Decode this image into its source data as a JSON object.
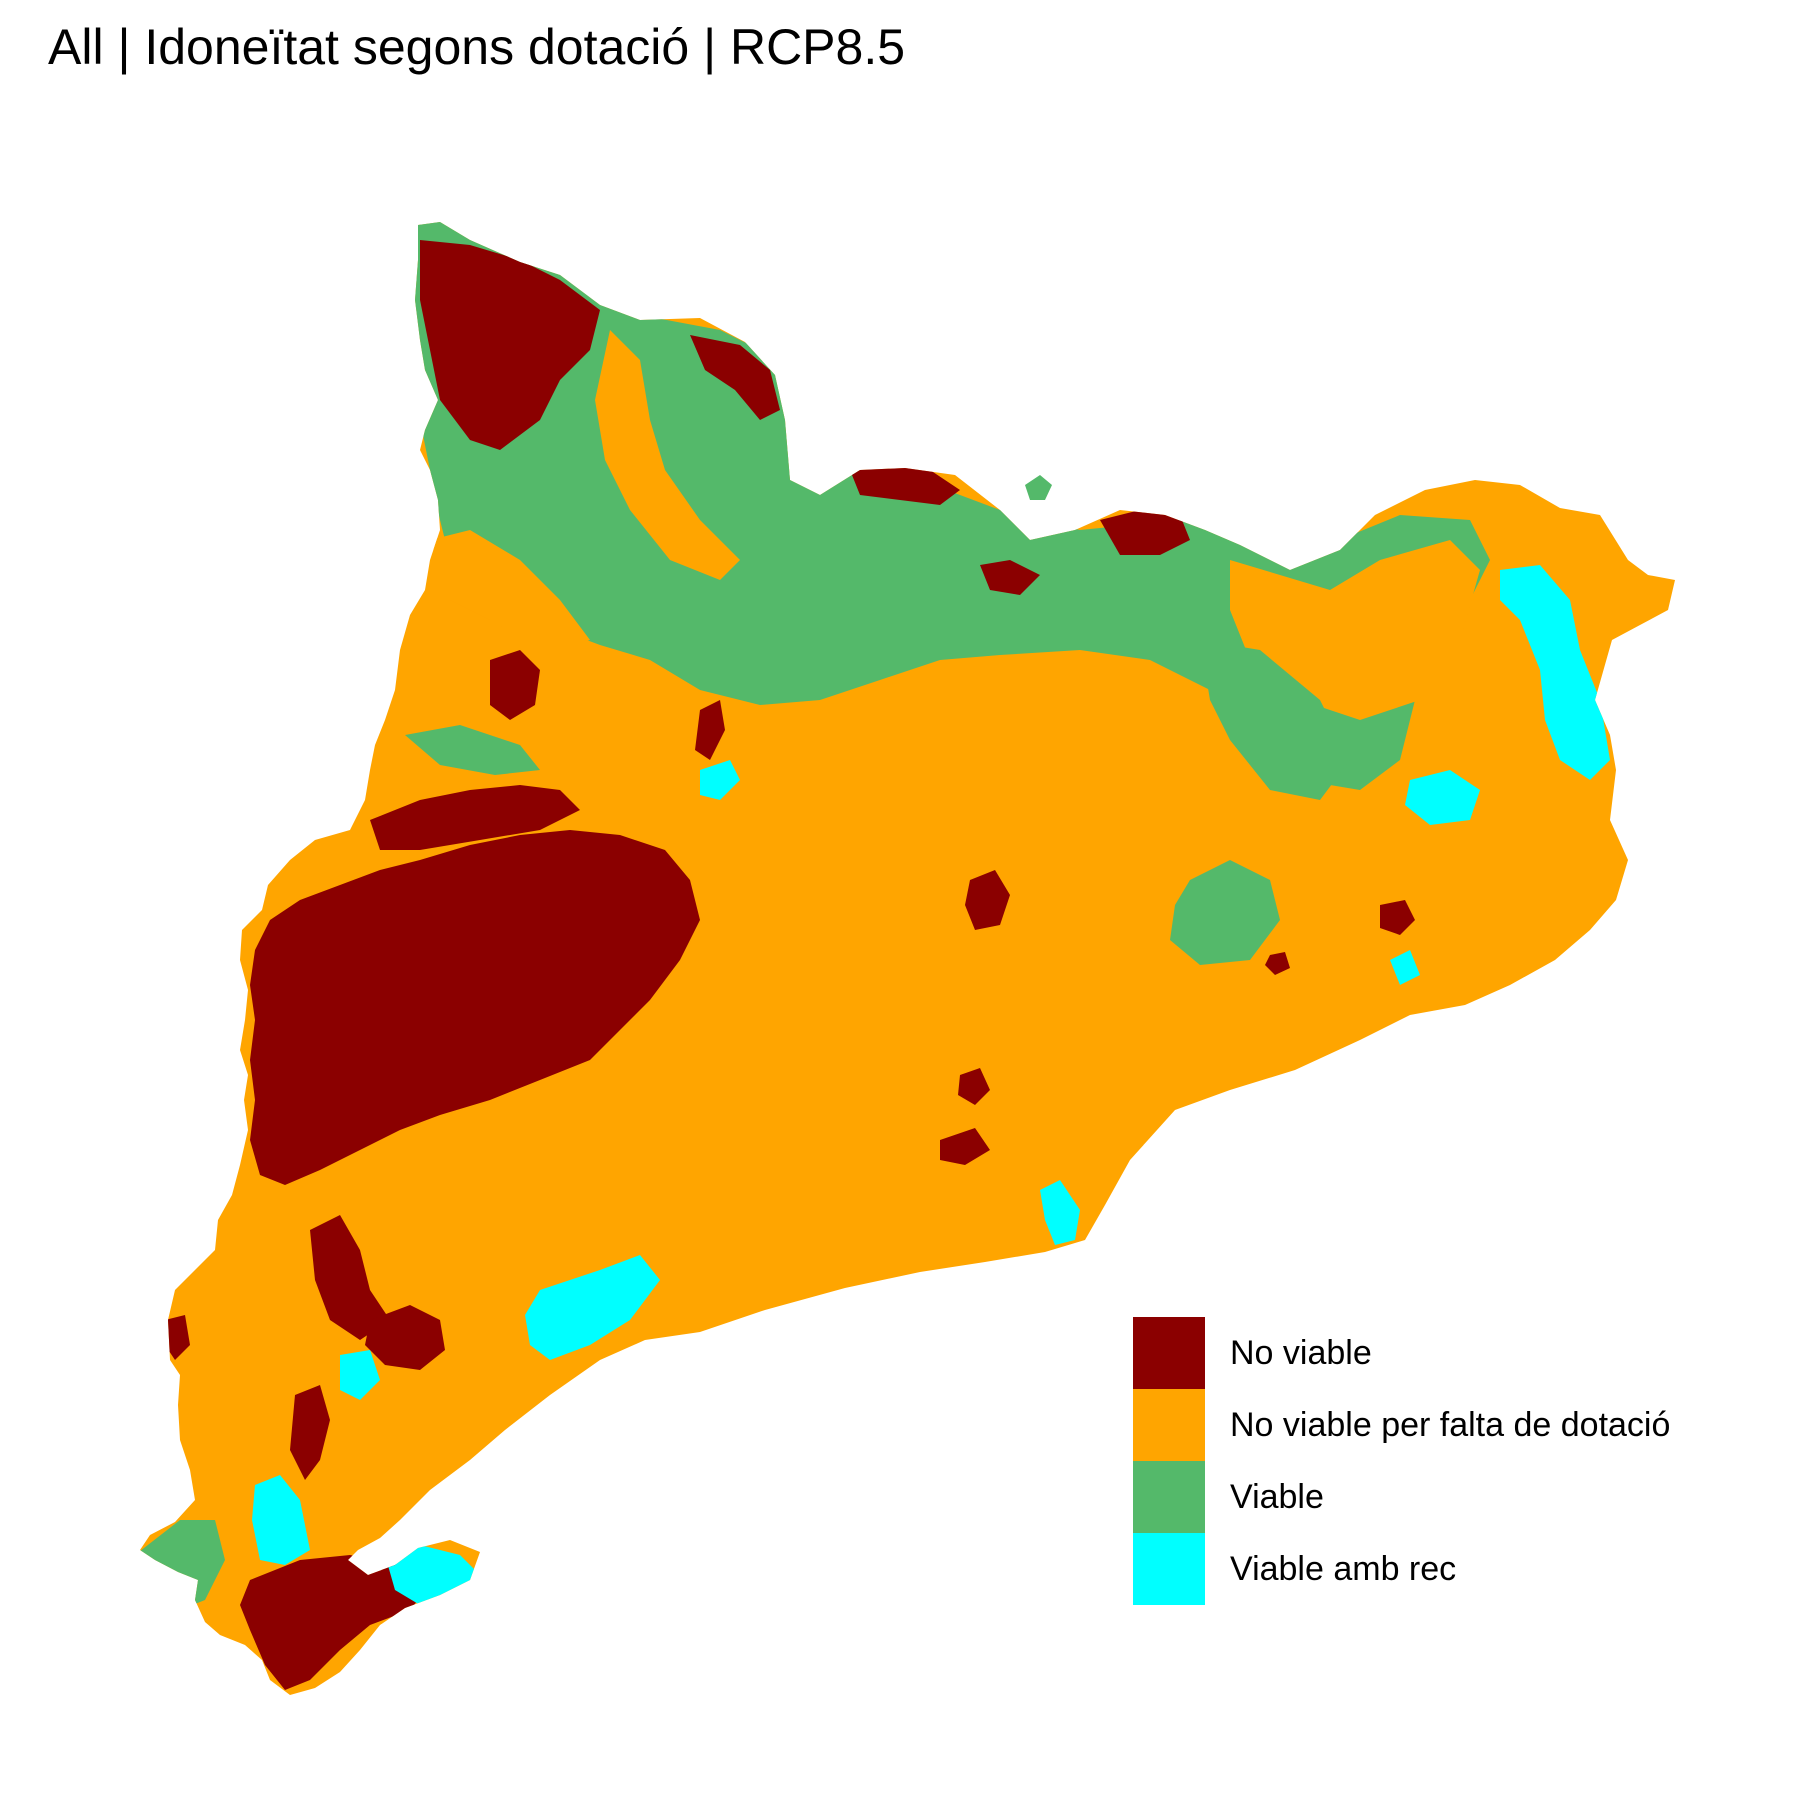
{
  "title": "All | Idoneïtat segons dotació | RCP8.5",
  "colors": {
    "no_viable": "#8B0000",
    "no_viable_dotacio": "#FFA500",
    "viable": "#54B96A",
    "viable_amb_rec": "#00FFFF"
  },
  "legend": [
    {
      "label": "No viable",
      "color": "#8B0000"
    },
    {
      "label": "No viable per falta de dotació",
      "color": "#FFA500"
    },
    {
      "label": "Viable",
      "color": "#54B96A"
    },
    {
      "label": "Viable amb rec",
      "color": "#00FFFF"
    }
  ]
}
